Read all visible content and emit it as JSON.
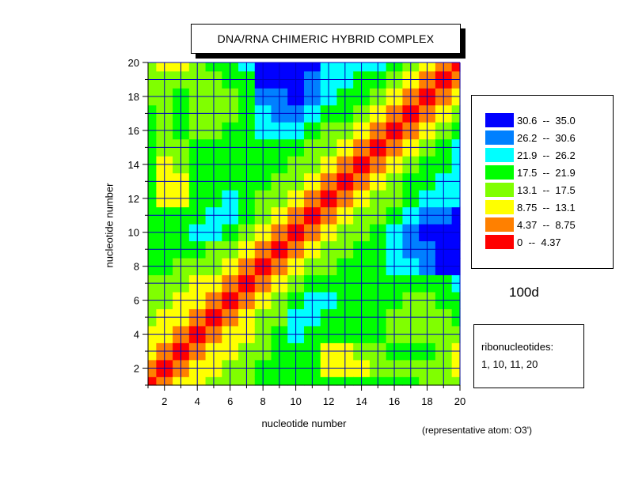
{
  "chart_data": {
    "type": "heatmap",
    "title": "DNA/RNA CHIMERIC HYBRID COMPLEX",
    "xlabel": "nucleotide number",
    "ylabel": "nucleotide number",
    "xlim": [
      1,
      20
    ],
    "ylim": [
      1,
      20
    ],
    "xticks": [
      2,
      4,
      6,
      8,
      10,
      12,
      14,
      16,
      18,
      20
    ],
    "yticks": [
      2,
      4,
      6,
      8,
      10,
      12,
      14,
      16,
      18,
      20
    ],
    "grid": true,
    "legend_position": "right",
    "levels": [
      {
        "label": "30.6  --  35.0",
        "min": 30.6,
        "max": 35.0,
        "color": "#0000ff"
      },
      {
        "label": "26.2  --  30.6",
        "min": 26.2,
        "max": 30.6,
        "color": "#0080ff"
      },
      {
        "label": "21.9  --  26.2",
        "min": 21.9,
        "max": 26.2,
        "color": "#00ffff"
      },
      {
        "label": "17.5  --  21.9",
        "min": 17.5,
        "max": 21.9,
        "color": "#00ff00"
      },
      {
        "label": "13.1  --  17.5",
        "min": 13.1,
        "max": 17.5,
        "color": "#80ff00"
      },
      {
        "label": "8.75  --  13.1",
        "min": 8.75,
        "max": 13.1,
        "color": "#ffff00"
      },
      {
        "label": "4.37  --  8.75",
        "min": 4.37,
        "max": 8.75,
        "color": "#ff8000"
      },
      {
        "label": "0  --  4.37",
        "min": 0,
        "max": 4.37,
        "color": "#ff0000"
      }
    ],
    "matrix": [
      [
        0,
        7,
        11,
        12,
        14,
        16,
        17,
        19,
        20,
        21,
        21,
        21,
        21,
        21,
        20,
        19,
        18,
        17,
        16,
        15
      ],
      [
        7,
        0,
        7,
        11,
        13,
        15,
        17,
        18,
        20,
        21,
        19,
        12,
        11,
        13,
        16,
        17,
        17,
        17,
        14,
        12
      ],
      [
        11,
        7,
        0,
        7,
        11,
        13,
        15,
        16,
        18,
        20,
        20,
        13,
        12,
        14,
        17,
        18,
        18,
        18,
        14,
        12
      ],
      [
        12,
        11,
        7,
        0,
        7,
        11,
        13,
        15,
        18,
        26,
        20,
        18,
        18,
        18,
        18,
        17,
        17,
        17,
        17,
        17
      ],
      [
        14,
        13,
        11,
        7,
        0,
        7,
        11,
        14,
        17,
        22,
        22,
        21,
        20,
        19,
        18,
        17,
        16,
        16,
        17,
        18
      ],
      [
        16,
        15,
        13,
        11,
        7,
        0,
        7,
        11,
        15,
        18,
        24,
        22,
        21,
        20,
        19,
        18,
        17,
        17,
        18,
        19
      ],
      [
        17,
        17,
        15,
        13,
        11,
        7,
        0,
        7,
        11,
        14,
        18,
        20,
        20,
        20,
        20,
        19,
        18,
        19,
        21,
        22
      ],
      [
        19,
        18,
        16,
        15,
        14,
        11,
        7,
        0,
        7,
        11,
        15,
        17,
        18,
        19,
        21,
        23,
        25,
        28,
        31,
        33
      ],
      [
        20,
        20,
        18,
        18,
        17,
        15,
        11,
        7,
        0,
        7,
        11,
        15,
        17,
        19,
        21,
        24,
        27,
        30,
        33,
        34
      ],
      [
        21,
        21,
        20,
        26,
        22,
        18,
        14,
        11,
        7,
        0,
        7,
        11,
        15,
        17,
        20,
        23,
        27,
        31,
        33,
        34
      ],
      [
        21,
        19,
        20,
        20,
        22,
        24,
        18,
        15,
        11,
        7,
        0,
        7,
        11,
        14,
        17,
        20,
        24,
        28,
        30,
        31
      ],
      [
        21,
        12,
        13,
        18,
        21,
        22,
        20,
        17,
        15,
        11,
        7,
        0,
        7,
        11,
        16,
        17,
        19,
        22,
        24,
        25
      ],
      [
        21,
        11,
        12,
        18,
        20,
        21,
        20,
        18,
        17,
        15,
        11,
        7,
        0,
        7,
        11,
        15,
        18,
        20,
        22,
        23
      ],
      [
        21,
        13,
        14,
        18,
        19,
        20,
        20,
        19,
        19,
        17,
        14,
        11,
        7,
        0,
        7,
        11,
        15,
        18,
        20,
        22
      ],
      [
        20,
        16,
        17,
        18,
        18,
        19,
        20,
        21,
        21,
        20,
        17,
        16,
        11,
        7,
        0,
        7,
        11,
        15,
        18,
        22
      ],
      [
        19,
        17,
        18,
        17,
        17,
        18,
        19,
        23,
        24,
        23,
        20,
        17,
        15,
        11,
        7,
        0,
        7,
        11,
        15,
        19
      ],
      [
        18,
        17,
        18,
        17,
        16,
        17,
        18,
        25,
        27,
        27,
        24,
        19,
        18,
        15,
        11,
        7,
        0,
        7,
        11,
        14
      ],
      [
        17,
        17,
        18,
        17,
        16,
        17,
        19,
        28,
        30,
        31,
        28,
        22,
        20,
        18,
        15,
        11,
        7,
        0,
        7,
        11
      ],
      [
        16,
        14,
        14,
        17,
        17,
        18,
        21,
        31,
        33,
        33,
        30,
        24,
        22,
        20,
        18,
        15,
        11,
        7,
        0,
        7
      ],
      [
        15,
        12,
        12,
        17,
        18,
        19,
        22,
        33,
        34,
        34,
        31,
        25,
        23,
        22,
        22,
        19,
        14,
        11,
        7,
        0
      ]
    ]
  },
  "annotations": {
    "structure_id": "100d",
    "ribonucleotides_title": "ribonucleotides:",
    "ribonucleotides_list": "1, 10, 11, 20",
    "atom_note": "(representative atom: O3')"
  }
}
